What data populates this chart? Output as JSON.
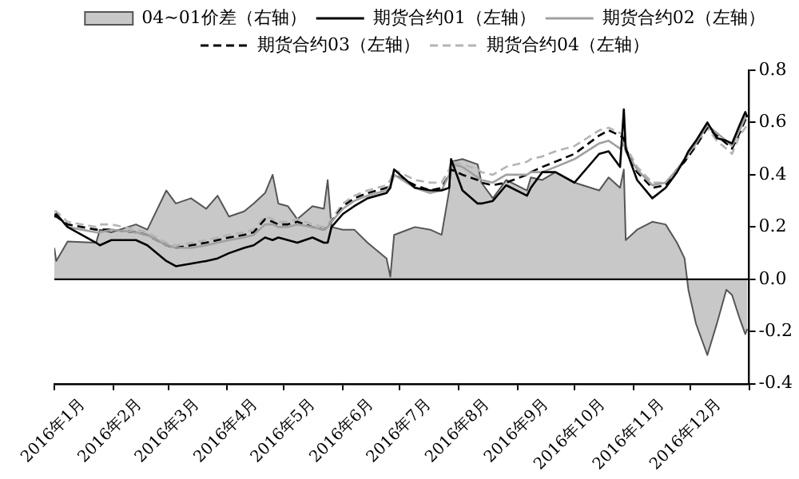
{
  "chart_data": {
    "type": "line",
    "x": [
      "2016-01-01",
      "2016-01-02",
      "2016-01-08",
      "2016-01-23",
      "2016-01-25",
      "2016-01-31",
      "2016-02-13",
      "2016-02-19",
      "2016-02-29",
      "2016-03-05",
      "2016-03-13",
      "2016-03-21",
      "2016-03-27",
      "2016-04-02",
      "2016-04-10",
      "2016-04-15",
      "2016-04-21",
      "2016-04-25",
      "2016-04-28",
      "2016-05-03",
      "2016-05-08",
      "2016-05-16",
      "2016-05-22",
      "2016-05-24",
      "2016-05-26",
      "2016-06-01",
      "2016-06-07",
      "2016-06-14",
      "2016-06-24",
      "2016-06-26",
      "2016-06-28",
      "2016-07-09",
      "2016-07-17",
      "2016-07-23",
      "2016-07-27",
      "2016-07-28",
      "2016-08-03",
      "2016-08-11",
      "2016-08-13",
      "2016-08-19",
      "2016-08-26",
      "2016-09-06",
      "2016-09-08",
      "2016-09-14",
      "2016-09-21",
      "2016-10-01",
      "2016-10-14",
      "2016-10-19",
      "2016-10-25",
      "2016-10-27",
      "2016-10-28",
      "2016-11-03",
      "2016-11-11",
      "2016-11-18",
      "2016-11-24",
      "2016-11-28",
      "2016-11-30",
      "2016-12-04",
      "2016-12-10",
      "2016-12-15",
      "2016-12-20",
      "2016-12-23",
      "2016-12-27",
      "2016-12-30",
      "2016-12-31"
    ],
    "series": [
      {
        "name": "04~01价差（右轴）",
        "type": "area",
        "color": "#c8c8c8",
        "values": [
          0.12,
          0.07,
          0.145,
          0.14,
          0.19,
          0.18,
          0.21,
          0.19,
          0.34,
          0.29,
          0.31,
          0.27,
          0.32,
          0.24,
          0.26,
          0.29,
          0.33,
          0.4,
          0.29,
          0.28,
          0.23,
          0.28,
          0.27,
          0.38,
          0.2,
          0.19,
          0.19,
          0.14,
          0.08,
          0.01,
          0.17,
          0.2,
          0.19,
          0.17,
          0.34,
          0.45,
          0.46,
          0.44,
          0.37,
          0.31,
          0.38,
          0.34,
          0.39,
          0.38,
          0.41,
          0.37,
          0.34,
          0.39,
          0.35,
          0.42,
          0.15,
          0.19,
          0.22,
          0.21,
          0.14,
          0.08,
          -0.04,
          -0.17,
          -0.29,
          -0.17,
          -0.04,
          -0.06,
          -0.15,
          -0.21,
          -0.19
        ]
      },
      {
        "name": "期货合约01（左轴）",
        "type": "line",
        "color": "#000000",
        "line_style": "solid",
        "values": [
          0.24,
          0.25,
          0.2,
          0.14,
          0.13,
          0.15,
          0.15,
          0.13,
          0.07,
          0.05,
          0.06,
          0.07,
          0.08,
          0.1,
          0.12,
          0.13,
          0.16,
          0.15,
          0.16,
          0.15,
          0.14,
          0.16,
          0.14,
          0.14,
          0.2,
          0.25,
          0.28,
          0.31,
          0.33,
          0.35,
          0.42,
          0.35,
          0.34,
          0.34,
          0.35,
          0.46,
          0.34,
          0.29,
          0.29,
          0.3,
          0.36,
          0.32,
          0.35,
          0.41,
          0.41,
          0.37,
          0.48,
          0.49,
          0.43,
          0.65,
          0.5,
          0.38,
          0.31,
          0.35,
          0.41,
          0.46,
          0.49,
          0.53,
          0.6,
          0.54,
          0.53,
          0.52,
          0.59,
          0.64,
          0.62
        ]
      },
      {
        "name": "期货合约02（左轴）",
        "type": "line",
        "color": "#a0a0a0",
        "line_style": "solid",
        "values": [
          0.25,
          0.25,
          0.2,
          0.18,
          0.18,
          0.19,
          0.18,
          0.17,
          0.13,
          0.12,
          0.12,
          0.13,
          0.14,
          0.15,
          0.16,
          0.17,
          0.21,
          0.21,
          0.2,
          0.2,
          0.21,
          0.2,
          0.19,
          0.2,
          0.22,
          0.27,
          0.3,
          0.32,
          0.34,
          0.36,
          0.4,
          0.35,
          0.33,
          0.34,
          0.4,
          0.44,
          0.43,
          0.39,
          0.38,
          0.37,
          0.4,
          0.4,
          0.41,
          0.41,
          0.43,
          0.46,
          0.52,
          0.53,
          0.5,
          0.52,
          0.49,
          0.42,
          0.36,
          0.37,
          0.42,
          0.46,
          0.48,
          0.52,
          0.59,
          0.56,
          0.53,
          0.51,
          0.57,
          0.62,
          0.63
        ]
      },
      {
        "name": "期货合约03（左轴）",
        "type": "line",
        "color": "#000000",
        "line_style": "dashed",
        "values": [
          0.24,
          0.24,
          0.21,
          0.19,
          0.19,
          0.19,
          0.18,
          0.17,
          0.13,
          0.12,
          0.13,
          0.14,
          0.15,
          0.16,
          0.17,
          0.18,
          0.23,
          0.22,
          0.21,
          0.21,
          0.22,
          0.2,
          0.19,
          0.2,
          0.22,
          0.28,
          0.31,
          0.33,
          0.35,
          0.36,
          0.4,
          0.36,
          0.34,
          0.35,
          0.4,
          0.42,
          0.4,
          0.38,
          0.37,
          0.36,
          0.37,
          0.4,
          0.41,
          0.43,
          0.45,
          0.48,
          0.55,
          0.57,
          0.55,
          0.54,
          0.5,
          0.41,
          0.35,
          0.36,
          0.42,
          0.45,
          0.47,
          0.51,
          0.58,
          0.55,
          0.52,
          0.5,
          0.56,
          0.61,
          0.62
        ]
      },
      {
        "name": "期货合约04（左轴）",
        "type": "line",
        "color": "#b4b4b4",
        "line_style": "dashed",
        "values": [
          0.26,
          0.26,
          0.22,
          0.2,
          0.21,
          0.21,
          0.19,
          0.18,
          0.14,
          0.13,
          0.14,
          0.15,
          0.16,
          0.17,
          0.18,
          0.19,
          0.24,
          0.23,
          0.22,
          0.22,
          0.23,
          0.21,
          0.2,
          0.21,
          0.23,
          0.29,
          0.32,
          0.34,
          0.36,
          0.38,
          0.42,
          0.38,
          0.37,
          0.37,
          0.42,
          0.45,
          0.44,
          0.42,
          0.41,
          0.4,
          0.43,
          0.45,
          0.46,
          0.47,
          0.49,
          0.51,
          0.57,
          0.58,
          0.56,
          0.55,
          0.51,
          0.43,
          0.37,
          0.37,
          0.42,
          0.45,
          0.47,
          0.51,
          0.58,
          0.53,
          0.5,
          0.48,
          0.55,
          0.58,
          0.59
        ]
      }
    ],
    "xlim": [
      "2016-01-01",
      "2017-01-01"
    ],
    "xticks": [
      {
        "value": "2016-01-01",
        "label": null
      },
      {
        "value": "2016-01-16",
        "label": "2016年1月"
      },
      {
        "value": "2016-02-01",
        "label": null
      },
      {
        "value": "2016-02-15",
        "label": "2016年2月"
      },
      {
        "value": "2016-03-01",
        "label": null
      },
      {
        "value": "2016-03-16",
        "label": "2016年3月"
      },
      {
        "value": "2016-04-01",
        "label": null
      },
      {
        "value": "2016-04-16",
        "label": "2016年4月"
      },
      {
        "value": "2016-05-01",
        "label": null
      },
      {
        "value": "2016-05-16",
        "label": "2016年5月"
      },
      {
        "value": "2016-06-01",
        "label": null
      },
      {
        "value": "2016-06-16",
        "label": "2016年6月"
      },
      {
        "value": "2016-07-01",
        "label": null
      },
      {
        "value": "2016-07-16",
        "label": "2016年7月"
      },
      {
        "value": "2016-08-01",
        "label": null
      },
      {
        "value": "2016-08-16",
        "label": "2016年8月"
      },
      {
        "value": "2016-09-01",
        "label": null
      },
      {
        "value": "2016-09-16",
        "label": "2016年9月"
      },
      {
        "value": "2016-10-01",
        "label": null
      },
      {
        "value": "2016-10-16",
        "label": "2016年10月"
      },
      {
        "value": "2016-11-01",
        "label": null
      },
      {
        "value": "2016-11-16",
        "label": "2016年11月"
      },
      {
        "value": "2016-12-01",
        "label": null
      },
      {
        "value": "2016-12-16",
        "label": "2016年12月"
      },
      {
        "value": "2017-01-01",
        "label": null
      }
    ],
    "ylim": [
      -0.4,
      0.8
    ],
    "yticks": [
      -0.4,
      -0.2,
      {
        "value": 0,
        "label": "0.0"
      },
      0.2,
      0.4,
      0.6,
      0.8
    ],
    "ref_lines": [
      {
        "axis": "y",
        "value": 0,
        "color": "#000000"
      }
    ],
    "legend": "top",
    "grid": false
  }
}
